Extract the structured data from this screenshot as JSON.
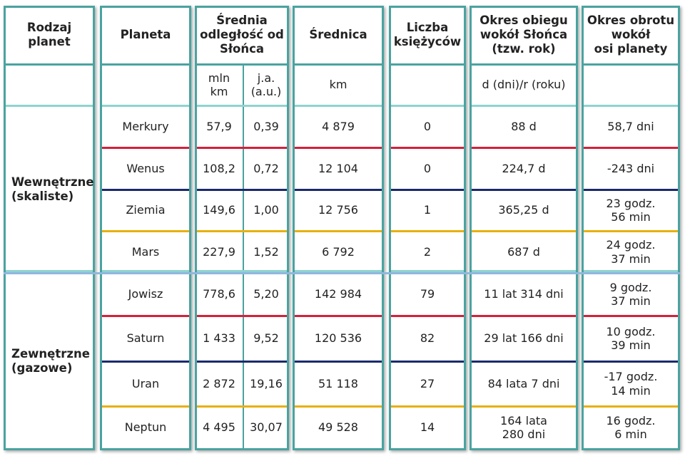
{
  "header": {
    "columns": [
      "Rodzaj\nplanet",
      "Planeta",
      "Średnia\nodległość od\nSłońca",
      "Średnica",
      "Liczba\nksiężyców",
      "Okres obiegu\nwokół Słońca\n(tzw. rok)",
      "Okres obrotu\nwokół\nosi planety"
    ]
  },
  "units": [
    "mln\nkm",
    "j.a.\n(a.u.)",
    "km",
    "d (dni)/r (roku)"
  ],
  "groups": [
    {
      "label": "Wewnętrzne\n(skaliste)",
      "rows": [
        [
          "Merkury",
          "57,9",
          "0,39",
          "4 879",
          "0",
          "88 d",
          "58,7 dni"
        ],
        [
          "Wenus",
          "108,2",
          "0,72",
          "12 104",
          "0",
          "224,7 d",
          "-243 dni"
        ],
        [
          "Ziemia",
          "149,6",
          "1,00",
          "12 756",
          "1",
          "365,25 d",
          "23 godz.\n56 min"
        ],
        [
          "Mars",
          "227,9",
          "1,52",
          "6 792",
          "2",
          "687 d",
          "24 godz.\n37 min"
        ]
      ]
    },
    {
      "label": "Zewnętrzne\n(gazowe)",
      "rows": [
        [
          "Jowisz",
          "778,6",
          "5,20",
          "142 984",
          "79",
          "11 lat 314 dni",
          "9 godz.\n37 min"
        ],
        [
          "Saturn",
          "1 433",
          "9,52",
          "120 536",
          "82",
          "29 lat 166 dni",
          "10 godz.\n39 min"
        ],
        [
          "Uran",
          "2 872",
          "19,16",
          "51 118",
          "27",
          "84 lata 7 dni",
          "-17 godz.\n14 min"
        ],
        [
          "Neptun",
          "4 495",
          "30,07",
          "49 528",
          "14",
          "164 lata\n280 dni",
          "16 godz.\n6 min"
        ]
      ]
    }
  ]
}
